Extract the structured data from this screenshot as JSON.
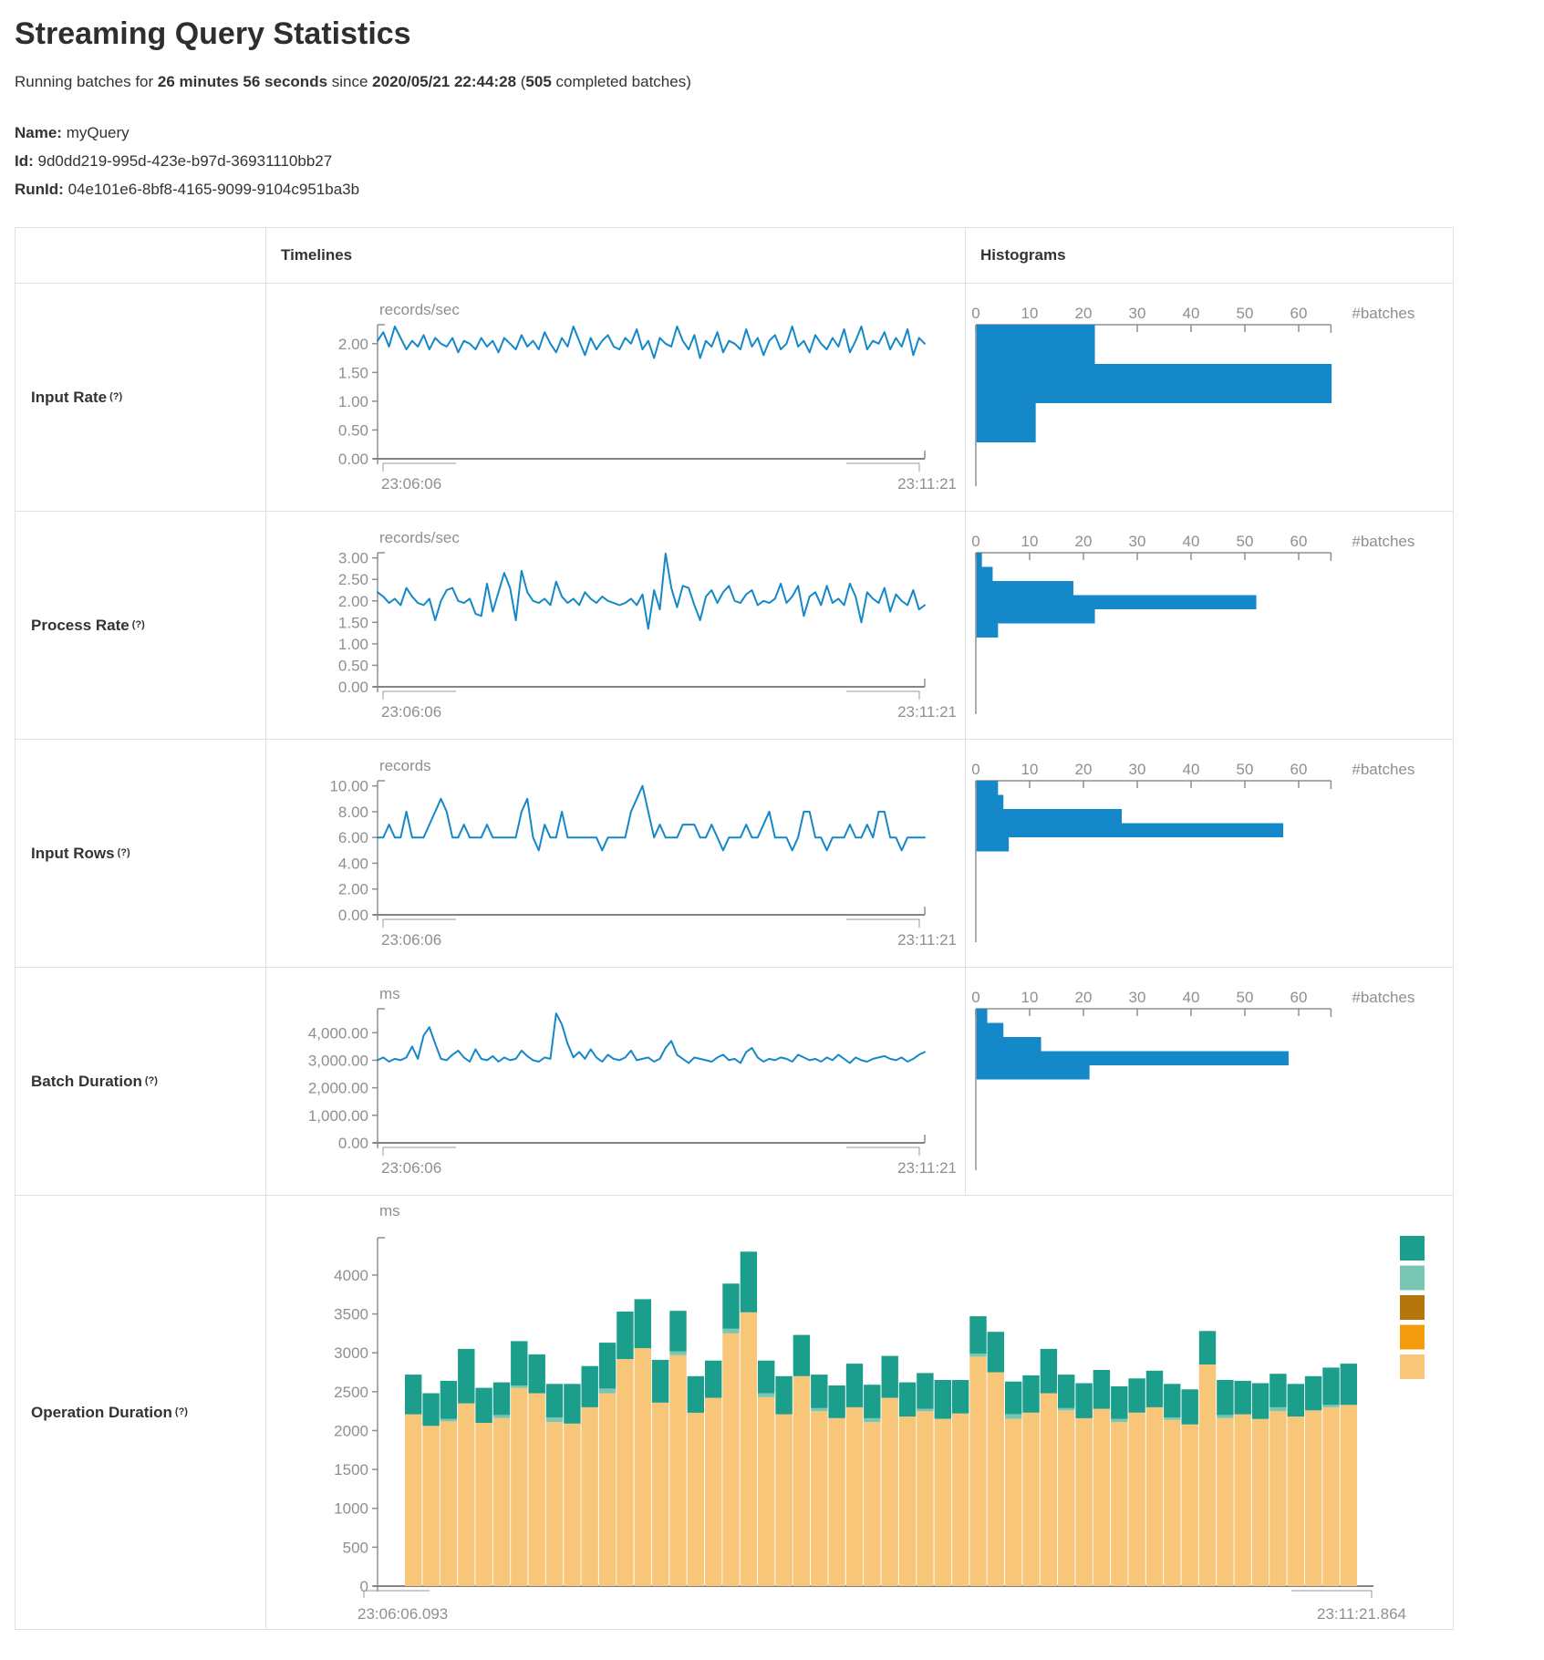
{
  "page": {
    "title": "Streaming Query Statistics",
    "subtitle": {
      "prefix": "Running batches for ",
      "duration": "26 minutes 56 seconds",
      "mid": " since ",
      "start_time": "2020/05/21 22:44:28",
      "paren": " (",
      "completed_count": "505",
      "suffix": " completed batches)"
    },
    "meta": {
      "name_label": "Name:",
      "name": "myQuery",
      "id_label": "Id:",
      "id": "9d0dd219-995d-423e-b97d-36931110bb27",
      "runid_label": "RunId:",
      "runid": "04e101e6-8bf8-4165-9099-9104c951ba3b"
    },
    "table": {
      "col_timelines": "Timelines",
      "col_histograms": "Histograms",
      "rows": [
        {
          "label": "Input Rate",
          "help": "(?)"
        },
        {
          "label": "Process Rate",
          "help": "(?)"
        },
        {
          "label": "Input Rows",
          "help": "(?)"
        },
        {
          "label": "Batch Duration",
          "help": "(?)"
        },
        {
          "label": "Operation Duration",
          "help": "(?)"
        }
      ]
    }
  },
  "colors": {
    "blue": "#1488c8",
    "axis_gray": "#8f8f8f",
    "teal": "#1b9e8c",
    "light_teal": "#79c6b3",
    "brown": "#b5760c",
    "orange": "#f39c0e",
    "tan": "#f7c678",
    "border": "#e0e0e0"
  },
  "chart_data": [
    {
      "id": "input-rate-timeline",
      "type": "line",
      "title": "Input Rate",
      "unit": "records/sec",
      "x_start": "23:06:06",
      "x_end": "23:11:21",
      "ymax": 2.33,
      "yticks": {
        "labels": [
          "2.00",
          "1.50",
          "1.00",
          "0.50",
          "0.00"
        ],
        "values": [
          2,
          1.5,
          1,
          0.5,
          0
        ]
      },
      "values": [
        2.05,
        2.2,
        1.95,
        2.3,
        2.1,
        1.9,
        2.05,
        1.95,
        2.15,
        1.9,
        2.1,
        2.0,
        1.95,
        2.1,
        1.85,
        2.05,
        2.0,
        1.9,
        2.1,
        1.95,
        2.05,
        1.85,
        2.1,
        2.0,
        1.9,
        2.15,
        1.95,
        2.05,
        1.9,
        2.2,
        2.0,
        1.85,
        2.1,
        1.95,
        2.3,
        2.05,
        1.8,
        2.1,
        1.9,
        2.05,
        2.15,
        1.95,
        1.9,
        2.1,
        2.0,
        2.25,
        1.9,
        2.05,
        1.75,
        2.1,
        2.0,
        1.95,
        2.3,
        2.05,
        1.9,
        2.15,
        1.75,
        2.05,
        1.95,
        2.2,
        1.85,
        2.05,
        2.0,
        1.9,
        2.25,
        1.95,
        2.1,
        1.8,
        2.05,
        2.15,
        1.9,
        2.0,
        2.3,
        1.95,
        2.05,
        1.85,
        2.15,
        2.0,
        1.9,
        2.1,
        1.95,
        2.25,
        1.85,
        2.05,
        2.3,
        1.9,
        2.05,
        2.0,
        2.2,
        1.9,
        2.1,
        1.95,
        2.25,
        1.8,
        2.1,
        2.0
      ]
    },
    {
      "id": "input-rate-histogram",
      "type": "bar",
      "orientation": "horizontal",
      "xlabel": "#batches",
      "ticks": [
        0,
        10,
        20,
        30,
        40,
        50,
        60
      ],
      "xmax": 66,
      "values": [
        22,
        66,
        11
      ]
    },
    {
      "id": "process-rate-timeline",
      "type": "line",
      "title": "Process Rate",
      "unit": "records/sec",
      "x_start": "23:06:06",
      "x_end": "23:11:21",
      "ymax": 3.12,
      "yticks": {
        "labels": [
          "3.00",
          "2.50",
          "2.00",
          "1.50",
          "1.00",
          "0.50",
          "0.00"
        ],
        "values": [
          3,
          2.5,
          2,
          1.5,
          1,
          0.5,
          0
        ]
      },
      "values": [
        2.2,
        2.1,
        1.95,
        2.05,
        1.9,
        2.3,
        2.1,
        1.95,
        1.9,
        2.05,
        1.55,
        2.0,
        2.25,
        2.3,
        2.0,
        1.95,
        2.05,
        1.7,
        1.65,
        2.4,
        1.75,
        2.2,
        2.65,
        2.3,
        1.55,
        2.7,
        2.2,
        2.0,
        1.95,
        2.05,
        1.9,
        2.45,
        2.1,
        1.95,
        2.05,
        1.9,
        2.2,
        2.05,
        1.95,
        2.1,
        2.0,
        1.95,
        1.9,
        1.95,
        2.05,
        1.9,
        2.15,
        1.35,
        2.25,
        1.8,
        3.1,
        2.3,
        1.85,
        2.35,
        2.3,
        1.9,
        1.55,
        2.1,
        2.25,
        1.95,
        2.2,
        2.35,
        2.0,
        1.95,
        2.15,
        2.25,
        1.9,
        2.0,
        1.95,
        2.05,
        2.4,
        1.95,
        2.1,
        2.35,
        1.65,
        2.1,
        2.2,
        1.9,
        2.35,
        1.95,
        2.05,
        1.9,
        2.4,
        2.1,
        1.5,
        2.2,
        2.05,
        1.95,
        2.3,
        1.75,
        2.15,
        2.0,
        1.9,
        2.25,
        1.8,
        1.9
      ]
    },
    {
      "id": "process-rate-histogram",
      "type": "bar",
      "orientation": "horizontal",
      "xlabel": "#batches",
      "ticks": [
        0,
        10,
        20,
        30,
        40,
        50,
        60
      ],
      "xmax": 66,
      "values": [
        1,
        3,
        18,
        52,
        22,
        4
      ]
    },
    {
      "id": "input-rows-timeline",
      "type": "line",
      "title": "Input Rows",
      "unit": "records",
      "x_start": "23:06:06",
      "x_end": "23:11:21",
      "ymax": 10.4,
      "yticks": {
        "labels": [
          "10.00",
          "8.00",
          "6.00",
          "4.00",
          "2.00",
          "0.00"
        ],
        "values": [
          10,
          8,
          6,
          4,
          2,
          0
        ]
      },
      "values": [
        6,
        6,
        7,
        6,
        6,
        8,
        6,
        6,
        6,
        7,
        8,
        9,
        8,
        6,
        6,
        7,
        6,
        6,
        6,
        7,
        6,
        6,
        6,
        6,
        6,
        8,
        9,
        6,
        5,
        7,
        6,
        6,
        8,
        6,
        6,
        6,
        6,
        6,
        6,
        5,
        6,
        6,
        6,
        6,
        8,
        9,
        10,
        8,
        6,
        7,
        6,
        6,
        6,
        7,
        7,
        7,
        6,
        6,
        7,
        6,
        5,
        6,
        6,
        6,
        7,
        6,
        6,
        7,
        8,
        6,
        6,
        6,
        5,
        6,
        8,
        8,
        6,
        6,
        5,
        6,
        6,
        6,
        7,
        6,
        6,
        7,
        6,
        8,
        8,
        6,
        6,
        5,
        6,
        6,
        6,
        6
      ]
    },
    {
      "id": "input-rows-histogram",
      "type": "bar",
      "orientation": "horizontal",
      "xlabel": "#batches",
      "ticks": [
        0,
        10,
        20,
        30,
        40,
        50,
        60
      ],
      "xmax": 66,
      "values": [
        4,
        5,
        27,
        57,
        6
      ]
    },
    {
      "id": "batch-duration-timeline",
      "type": "line",
      "title": "Batch Duration",
      "unit": "ms",
      "x_start": "23:06:06",
      "x_end": "23:11:21",
      "ymax": 4870,
      "yticks": {
        "labels": [
          "4,000.00",
          "3,000.00",
          "2,000.00",
          "1,000.00",
          "0.00"
        ],
        "values": [
          4000,
          3000,
          2000,
          1000,
          0
        ]
      },
      "values": [
        3000,
        3100,
        2950,
        3050,
        3000,
        3100,
        3500,
        3050,
        3900,
        4200,
        3600,
        3050,
        3000,
        3200,
        3350,
        3100,
        2950,
        3400,
        3050,
        3000,
        3150,
        2950,
        3100,
        3000,
        3050,
        3350,
        3150,
        3000,
        2950,
        3100,
        3050,
        4700,
        4300,
        3600,
        3100,
        3300,
        3050,
        3400,
        3100,
        2950,
        3200,
        3050,
        3000,
        3100,
        3350,
        3000,
        3050,
        3100,
        2950,
        3050,
        3450,
        3700,
        3200,
        3050,
        2900,
        3100,
        3050,
        3000,
        2950,
        3100,
        3200,
        3000,
        3050,
        2900,
        3300,
        3450,
        3100,
        2950,
        3050,
        3000,
        3100,
        3050,
        2950,
        3200,
        3100,
        3000,
        3050,
        2950,
        3100,
        3000,
        3200,
        3050,
        2900,
        3100,
        3000,
        2950,
        3050,
        3100,
        3150,
        3050,
        3000,
        3100,
        2950,
        3050,
        3200,
        3300
      ]
    },
    {
      "id": "batch-duration-histogram",
      "type": "bar",
      "orientation": "horizontal",
      "xlabel": "#batches",
      "ticks": [
        0,
        10,
        20,
        30,
        40,
        50,
        60
      ],
      "xmax": 66,
      "values": [
        2,
        5,
        12,
        58,
        21
      ]
    },
    {
      "id": "operation-duration",
      "type": "stacked-bar",
      "title": "Operation Duration",
      "unit": "ms",
      "x_start": "23:06:06.093",
      "x_end": "23:11:21.864",
      "ymax": 4480,
      "yticks": {
        "labels": [
          "4000",
          "3500",
          "3000",
          "2500",
          "2000",
          "1500",
          "1000",
          "500",
          "0"
        ],
        "values": [
          4000,
          3500,
          3000,
          2500,
          2000,
          1500,
          1000,
          500,
          0
        ]
      },
      "legend_colors": [
        "#1b9e8c",
        "#79c6b3",
        "#b5760c",
        "#f39c0e",
        "#f7c678"
      ],
      "series": [
        {
          "name": "bottom-tan",
          "color": "#f7c678",
          "values": [
            2210,
            2060,
            2120,
            2350,
            2100,
            2160,
            2550,
            2480,
            2110,
            2090,
            2300,
            2480,
            2920,
            3060,
            2360,
            2970,
            2230,
            2420,
            3250,
            3520,
            2430,
            2210,
            2700,
            2250,
            2160,
            2300,
            2110,
            2420,
            2180,
            2250,
            2150,
            2220,
            2950,
            2750,
            2150,
            2230,
            2480,
            2260,
            2160,
            2280,
            2110,
            2230,
            2300,
            2140,
            2080,
            2850,
            2160,
            2210,
            2150,
            2250,
            2180,
            2260,
            2300,
            2330
          ]
        },
        {
          "name": "mid-light-teal",
          "color": "#79c6b3",
          "values": [
            0,
            0,
            30,
            0,
            0,
            40,
            30,
            0,
            60,
            0,
            0,
            60,
            0,
            0,
            0,
            50,
            0,
            0,
            60,
            0,
            50,
            0,
            0,
            40,
            0,
            0,
            50,
            0,
            0,
            30,
            0,
            0,
            40,
            0,
            60,
            0,
            0,
            30,
            0,
            0,
            40,
            0,
            0,
            30,
            0,
            0,
            40,
            0,
            0,
            50,
            0,
            0,
            30,
            0
          ]
        },
        {
          "name": "top-teal",
          "color": "#1b9e8c",
          "values": [
            510,
            420,
            490,
            700,
            450,
            420,
            570,
            500,
            430,
            510,
            530,
            590,
            610,
            630,
            550,
            520,
            470,
            480,
            580,
            780,
            420,
            490,
            530,
            430,
            420,
            560,
            430,
            540,
            440,
            460,
            500,
            430,
            480,
            520,
            420,
            480,
            570,
            430,
            450,
            500,
            420,
            440,
            470,
            430,
            450,
            430,
            450,
            430,
            460,
            430,
            420,
            440,
            480,
            530
          ]
        }
      ]
    }
  ]
}
